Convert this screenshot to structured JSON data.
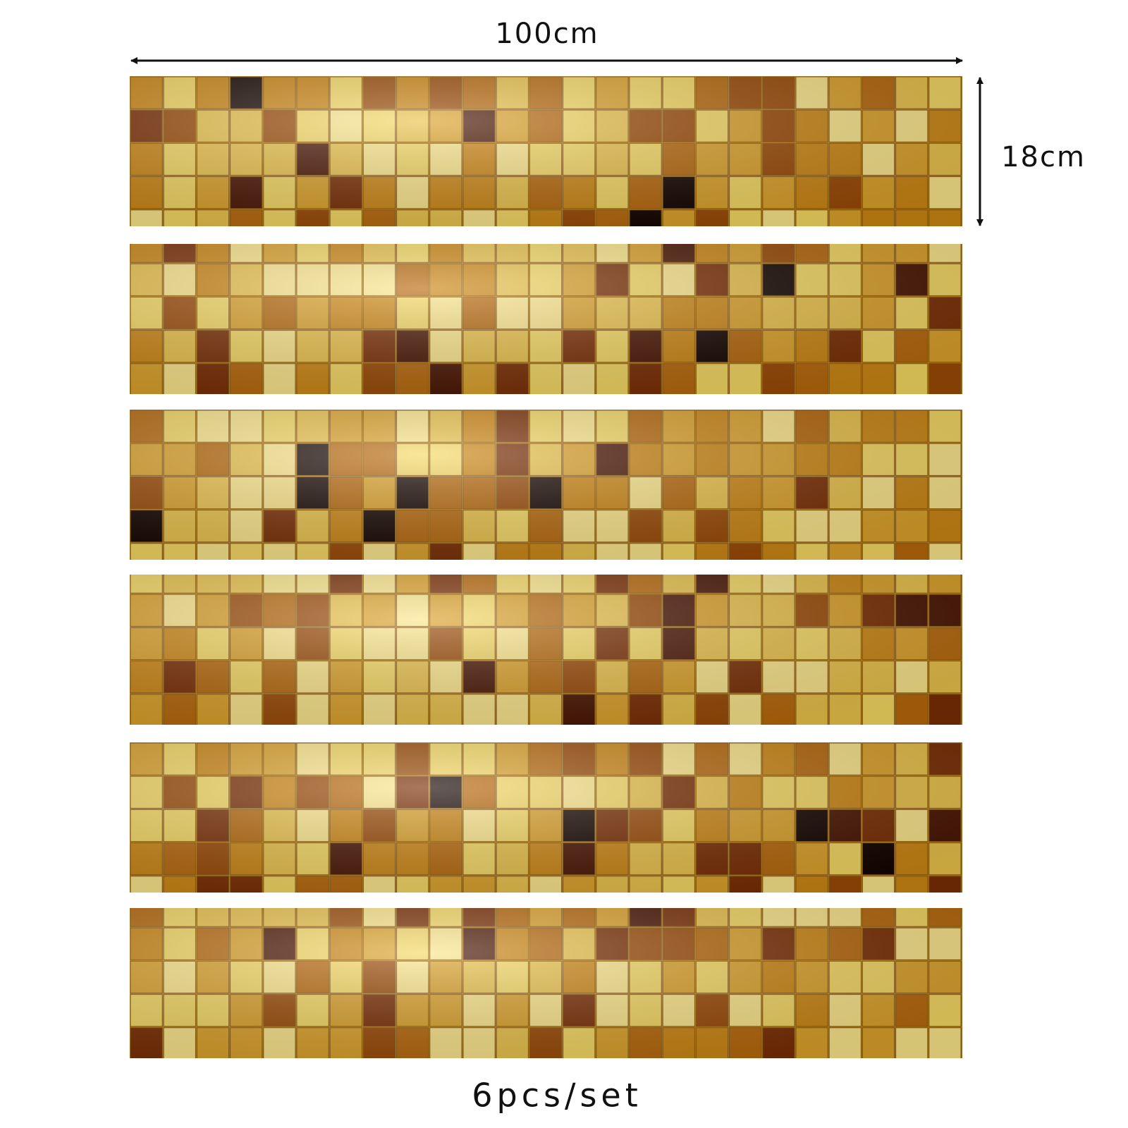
{
  "dimensions": {
    "width": "100cm",
    "height": "18cm"
  },
  "caption": "6pcs/set"
}
